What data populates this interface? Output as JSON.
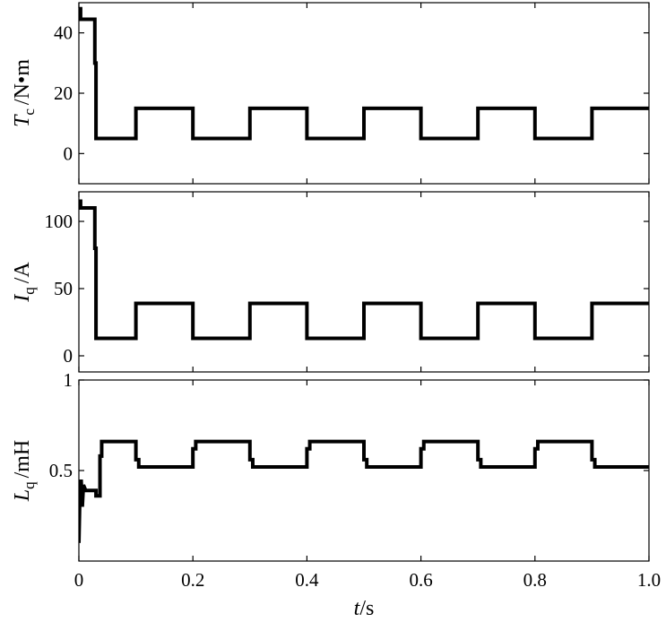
{
  "chart_data": [
    {
      "type": "line",
      "ylabel": {
        "var": "T",
        "sub": "c",
        "unit": "/N•m"
      },
      "xlim": [
        0,
        1.0
      ],
      "ylim": [
        -10,
        50
      ],
      "yticks": [
        0,
        20,
        40
      ],
      "yticklabels": [
        "0",
        "20",
        "40"
      ],
      "series": [
        {
          "x": [
            0,
            0.003,
            0.003,
            0.028,
            0.028,
            0.03,
            0.03,
            0.1,
            0.1,
            0.2,
            0.2,
            0.3,
            0.3,
            0.4,
            0.4,
            0.5,
            0.5,
            0.6,
            0.6,
            0.7,
            0.7,
            0.8,
            0.8,
            0.9,
            0.9,
            1.0
          ],
          "y": [
            48,
            48,
            44.5,
            44.5,
            30,
            30,
            5,
            5,
            15,
            15,
            5,
            5,
            15,
            15,
            5,
            5,
            15,
            15,
            5,
            5,
            15,
            15,
            5,
            5,
            15,
            15
          ]
        }
      ]
    },
    {
      "type": "line",
      "ylabel": {
        "var": "I",
        "sub": "q",
        "unit": "/A"
      },
      "xlim": [
        0,
        1.0
      ],
      "ylim": [
        -12,
        122
      ],
      "yticks": [
        0,
        50,
        100
      ],
      "yticklabels": [
        "0",
        "50",
        "100"
      ],
      "series": [
        {
          "x": [
            0,
            0.003,
            0.003,
            0.028,
            0.028,
            0.03,
            0.03,
            0.1,
            0.1,
            0.2,
            0.2,
            0.3,
            0.3,
            0.4,
            0.4,
            0.5,
            0.5,
            0.6,
            0.6,
            0.7,
            0.7,
            0.8,
            0.8,
            0.9,
            0.9,
            1.0
          ],
          "y": [
            115,
            115,
            110,
            110,
            80,
            80,
            13,
            13,
            39,
            39,
            13,
            13,
            39,
            39,
            13,
            13,
            39,
            39,
            13,
            13,
            39,
            39,
            13,
            13,
            39,
            39
          ]
        }
      ]
    },
    {
      "type": "line",
      "ylabel": {
        "var": "L",
        "sub": "q",
        "unit": "/mH"
      },
      "xlim": [
        0,
        1.0
      ],
      "xlabel": {
        "var": "t",
        "unit": "/s"
      },
      "xticks": [
        0,
        0.2,
        0.4,
        0.6,
        0.8,
        1.0
      ],
      "xticklabels": [
        "0",
        "0.2",
        "0.4",
        "0.6",
        "0.8",
        "1.0"
      ],
      "ylim": [
        0,
        1
      ],
      "yticks": [
        0.5,
        1
      ],
      "yticklabels": [
        "0.5",
        "1"
      ],
      "series": [
        {
          "x": [
            0,
            0.002,
            0.003,
            0.004,
            0.006,
            0.008,
            0.012,
            0.03,
            0.03,
            0.037,
            0.037,
            0.04,
            0.04,
            0.1,
            0.1,
            0.105,
            0.105,
            0.2,
            0.2,
            0.205,
            0.205,
            0.3,
            0.3,
            0.305,
            0.305,
            0.4,
            0.4,
            0.405,
            0.405,
            0.5,
            0.5,
            0.505,
            0.505,
            0.6,
            0.6,
            0.605,
            0.605,
            0.7,
            0.7,
            0.705,
            0.705,
            0.8,
            0.8,
            0.805,
            0.805,
            0.9,
            0.9,
            0.905,
            0.905,
            1.0
          ],
          "y": [
            0.1,
            0.4,
            0.3,
            0.45,
            0.3,
            0.42,
            0.39,
            0.39,
            0.36,
            0.36,
            0.58,
            0.58,
            0.66,
            0.66,
            0.56,
            0.56,
            0.52,
            0.52,
            0.62,
            0.62,
            0.66,
            0.66,
            0.56,
            0.56,
            0.52,
            0.52,
            0.62,
            0.62,
            0.66,
            0.66,
            0.56,
            0.56,
            0.52,
            0.52,
            0.62,
            0.62,
            0.66,
            0.66,
            0.56,
            0.56,
            0.52,
            0.52,
            0.62,
            0.62,
            0.66,
            0.66,
            0.56,
            0.56,
            0.52,
            0.52
          ]
        }
      ]
    }
  ]
}
